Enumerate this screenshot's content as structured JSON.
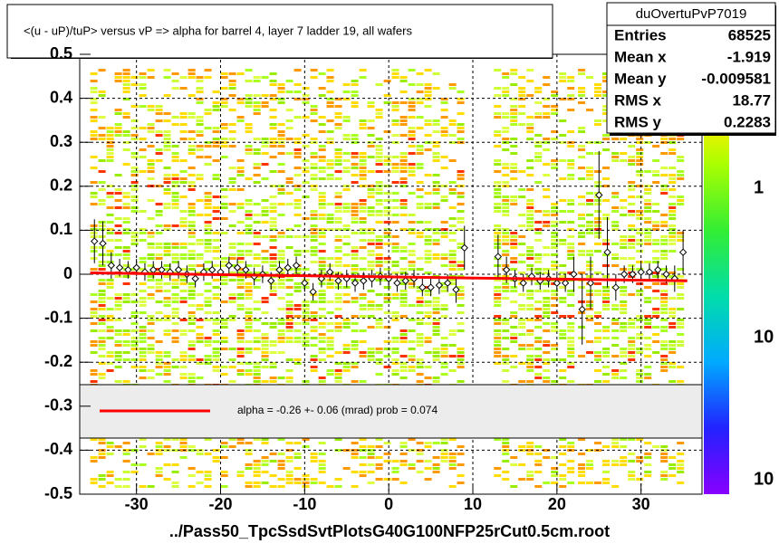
{
  "chart_data": {
    "type": "profile",
    "title": "<(u - uP)/tuP>  versus   vP =>  alpha for barrel 4, layer 7 ladder 19, all wafers",
    "x_label": "../Pass50_TpcSsdSvtPlotsG40G100NFP25rCut0.5cm.root",
    "xlim": [
      -36.75,
      37.25
    ],
    "xticks": [
      -30,
      -20,
      -10,
      0,
      10,
      20,
      30
    ],
    "ylim": [
      -0.5,
      0.5
    ],
    "yticks": [
      -0.5,
      -0.4,
      -0.3,
      -0.2,
      -0.1,
      0,
      0.1,
      0.2,
      0.3,
      0.4,
      0.5
    ],
    "grid": true,
    "color": "#000000",
    "filled_x_ranges": [
      [
        -35.5,
        9.5
      ],
      [
        12.5,
        22.5
      ],
      [
        22.5,
        26
      ],
      [
        26.5,
        35.5
      ]
    ],
    "x": [
      -35,
      -34,
      -33,
      -32,
      -31,
      -30,
      -29,
      -28,
      -27,
      -26,
      -25,
      -24,
      -23,
      -22,
      -21,
      -20,
      -19,
      -18,
      -17,
      -16,
      -15,
      -14,
      -13,
      -12,
      -11,
      -10,
      -9,
      -8,
      -7,
      -6,
      -5,
      -4,
      -3,
      -2,
      -1,
      0,
      1,
      2,
      3,
      4,
      5,
      6,
      7,
      8,
      9,
      13,
      14,
      15,
      16,
      17,
      18,
      19,
      20,
      21,
      22,
      23,
      24,
      25,
      26,
      27,
      28,
      29,
      30,
      31,
      32,
      33,
      34,
      35
    ],
    "values": [
      0.075,
      0.07,
      0.02,
      0.015,
      0.01,
      0.015,
      0.005,
      0.01,
      0.01,
      0.005,
      0.01,
      0,
      -0.01,
      0.005,
      0.01,
      0.005,
      0.02,
      0.015,
      0.01,
      -0.005,
      0,
      -0.015,
      0.01,
      0.015,
      0.02,
      -0.02,
      -0.04,
      -0.01,
      0.005,
      -0.015,
      -0.01,
      -0.02,
      -0.015,
      -0.01,
      -0.005,
      -0.01,
      -0.02,
      -0.015,
      -0.01,
      -0.03,
      -0.03,
      -0.025,
      -0.02,
      -0.035,
      0.06,
      0.04,
      0.01,
      -0.01,
      -0.02,
      -0.005,
      -0.015,
      -0.01,
      -0.02,
      -0.02,
      0,
      -0.08,
      -0.02,
      0.18,
      0.05,
      -0.03,
      0,
      0,
      0.005,
      0.005,
      0.01,
      0,
      -0.01,
      0.05
    ],
    "errors": [
      0.05,
      0.05,
      0.03,
      0.02,
      0.02,
      0.02,
      0.02,
      0.02,
      0.02,
      0.02,
      0.02,
      0.02,
      0.02,
      0.02,
      0.02,
      0.02,
      0.02,
      0.02,
      0.02,
      0.02,
      0.02,
      0.02,
      0.02,
      0.02,
      0.02,
      0.02,
      0.02,
      0.02,
      0.02,
      0.02,
      0.02,
      0.02,
      0.02,
      0.02,
      0.02,
      0.02,
      0.02,
      0.02,
      0.02,
      0.02,
      0.02,
      0.02,
      0.02,
      0.03,
      0.05,
      0.05,
      0.03,
      0.02,
      0.02,
      0.02,
      0.02,
      0.02,
      0.02,
      0.02,
      0.04,
      0.08,
      0.06,
      0.1,
      0.08,
      0.03,
      0.02,
      0.02,
      0.02,
      0.02,
      0.02,
      0.02,
      0.03,
      0.05
    ],
    "fit": {
      "color": "#ff0000",
      "x": [
        -35.5,
        35.5
      ],
      "y": [
        0.003,
        -0.015
      ],
      "label": "alpha =   -0.26 +-  0.06 (mrad) prob = 0.074"
    },
    "stats": {
      "name": "duOvertuPvP7019",
      "rows": [
        [
          "Entries",
          68525
        ],
        [
          "Mean x",
          -1.919
        ],
        [
          "Mean y",
          -0.009581
        ],
        [
          "RMS x",
          18.77
        ],
        [
          "RMS y",
          0.2283
        ]
      ]
    },
    "palette_labels": [
      "1",
      "10",
      "10"
    ]
  }
}
